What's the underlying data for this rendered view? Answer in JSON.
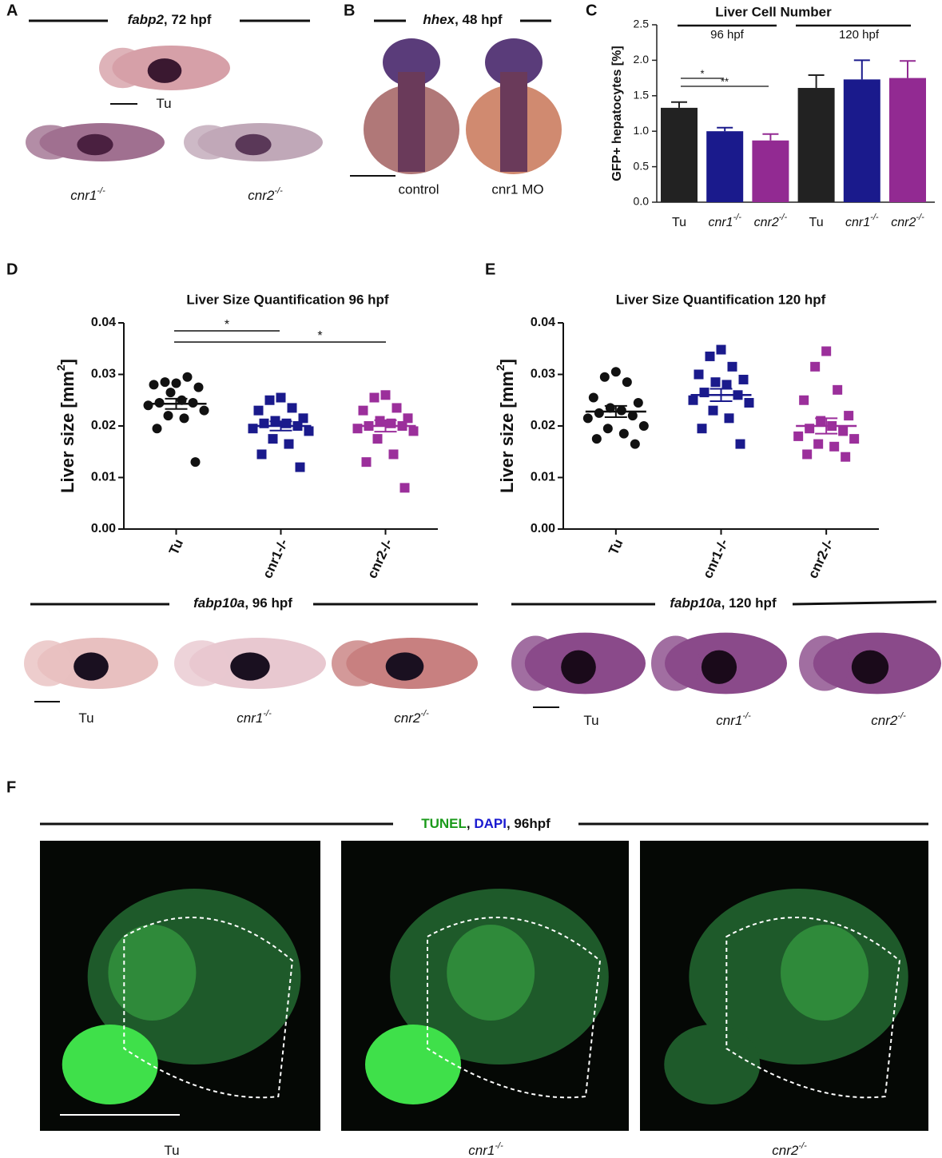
{
  "figure": {
    "panel_letters": [
      "A",
      "B",
      "C",
      "D",
      "E",
      "F"
    ],
    "panel_a": {
      "title": {
        "gene": "fabp2",
        "rest": ", 72 hpf"
      },
      "labels": [
        {
          "name": "Tu"
        },
        {
          "name": "cnr1",
          "sup": "-/-"
        },
        {
          "name": "cnr2",
          "sup": "-/-"
        }
      ]
    },
    "panel_b": {
      "title": {
        "gene": "hhex",
        "rest": ", 48 hpf"
      },
      "labels": [
        "control",
        "cnr1 MO"
      ]
    },
    "panel_d_images": {
      "title": {
        "gene": "fabp10a",
        "rest": ", 96 hpf"
      },
      "labels": [
        {
          "name": "Tu"
        },
        {
          "name": "cnr1",
          "sup": "-/-"
        },
        {
          "name": "cnr2",
          "sup": "-/-"
        }
      ]
    },
    "panel_e_images": {
      "title": {
        "gene": "fabp10a",
        "rest": ", 120 hpf"
      },
      "labels": [
        {
          "name": "Tu"
        },
        {
          "name": "cnr1",
          "sup": "-/-"
        },
        {
          "name": "cnr2",
          "sup": "-/-"
        }
      ]
    },
    "panel_f": {
      "title": [
        {
          "text": "TUNEL",
          "color": "#1a9a1a"
        },
        {
          "text": ", ",
          "color": "#111111"
        },
        {
          "text": "DAPI",
          "color": "#1a1ad0"
        },
        {
          "text": ", ",
          "color": "#111111"
        },
        {
          "text": "96hpf",
          "color": "#111111"
        }
      ],
      "labels": [
        {
          "name": "Tu"
        },
        {
          "name": "cnr1",
          "sup": "-/-"
        },
        {
          "name": "cnr2",
          "sup": "-/-"
        }
      ]
    }
  },
  "chart_data": [
    {
      "type": "bar",
      "title": "Liver Cell Number",
      "ylabel": "GFP+ hepatocytes [%]",
      "groups": [
        "96 hpf",
        "120 hpf"
      ],
      "categories": [
        {
          "name": "Tu"
        },
        {
          "name": "cnr1",
          "sup": "-/-"
        },
        {
          "name": "cnr2",
          "sup": "-/-"
        },
        {
          "name": "Tu"
        },
        {
          "name": "cnr1",
          "sup": "-/-"
        },
        {
          "name": "cnr2",
          "sup": "-/-"
        }
      ],
      "values": [
        1.33,
        1.0,
        0.87,
        1.61,
        1.73,
        1.75
      ],
      "errors": [
        0.08,
        0.05,
        0.09,
        0.18,
        0.27,
        0.24
      ],
      "colors": [
        "#222222",
        "#1a1a8c",
        "#922a92",
        "#222222",
        "#1a1a8c",
        "#922a92"
      ],
      "ylim": [
        0,
        2.5
      ],
      "yticks": [
        {
          "value": 0,
          "label": "0.0"
        },
        0.5,
        {
          "value": 1,
          "label": "1.0"
        },
        1.5,
        {
          "value": 2,
          "label": "2.0"
        },
        2.5
      ],
      "annotations": [
        "*",
        "**"
      ]
    },
    {
      "type": "scatter",
      "title": "Liver Size Quantification 96 hpf",
      "ylabel": {
        "text": "Liver size [mm",
        "sup": "2",
        "end": "]"
      },
      "categories": [
        "Tu",
        "cnr1-/-",
        "cnr2-/-"
      ],
      "groups": [
        {
          "color": "#111111",
          "marker": "circle",
          "values": [
            0.0283,
            0.0285,
            0.0295,
            0.028,
            0.0275,
            0.0265,
            0.025,
            0.0245,
            0.0245,
            0.024,
            0.023,
            0.022,
            0.0215,
            0.0195,
            0.013
          ],
          "mean": 0.0243,
          "sem": 0.001
        },
        {
          "color": "#1a1a8c",
          "marker": "square",
          "values": [
            0.0255,
            0.025,
            0.0235,
            0.023,
            0.0215,
            0.021,
            0.0205,
            0.0205,
            0.02,
            0.0195,
            0.019,
            0.0175,
            0.0165,
            0.0145,
            0.012
          ],
          "mean": 0.02,
          "sem": 0.0009
        },
        {
          "color": "#9b2f9b",
          "marker": "square",
          "values": [
            0.026,
            0.0255,
            0.0235,
            0.023,
            0.0215,
            0.021,
            0.0205,
            0.02,
            0.02,
            0.0195,
            0.019,
            0.0175,
            0.0145,
            0.013,
            0.008
          ],
          "mean": 0.02,
          "sem": 0.0011
        }
      ],
      "ylim": [
        0,
        0.04
      ],
      "yticks": [
        {
          "value": 0,
          "label": "0.00"
        },
        {
          "value": 0.01,
          "label": "0.01"
        },
        {
          "value": 0.02,
          "label": "0.02"
        },
        {
          "value": 0.03,
          "label": "0.03"
        },
        {
          "value": 0.04,
          "label": "0.04"
        }
      ],
      "annotations": [
        "*",
        "*"
      ]
    },
    {
      "type": "scatter",
      "title": "Liver Size Quantification 120 hpf",
      "ylabel": {
        "text": "Liver size [mm",
        "sup": "2",
        "end": "]"
      },
      "categories": [
        "Tu",
        "cnr1-/-",
        "cnr2-/-"
      ],
      "groups": [
        {
          "color": "#111111",
          "marker": "circle",
          "values": [
            0.0305,
            0.0295,
            0.0285,
            0.0255,
            0.0245,
            0.0235,
            0.023,
            0.0225,
            0.022,
            0.0215,
            0.02,
            0.0195,
            0.0185,
            0.0175,
            0.0165
          ],
          "mean": 0.0228,
          "sem": 0.0011
        },
        {
          "color": "#1a1a8c",
          "marker": "square",
          "values": [
            0.0348,
            0.0335,
            0.0315,
            0.03,
            0.029,
            0.0285,
            0.028,
            0.0265,
            0.026,
            0.025,
            0.0245,
            0.023,
            0.0215,
            0.0195,
            0.0165
          ],
          "mean": 0.026,
          "sem": 0.0012
        },
        {
          "color": "#9b2f9b",
          "marker": "square",
          "values": [
            0.0345,
            0.0315,
            0.027,
            0.025,
            0.022,
            0.021,
            0.02,
            0.0195,
            0.019,
            0.018,
            0.0175,
            0.0165,
            0.016,
            0.0145,
            0.014
          ],
          "mean": 0.02,
          "sem": 0.0015
        }
      ],
      "ylim": [
        0,
        0.04
      ],
      "yticks": [
        {
          "value": 0,
          "label": "0.00"
        },
        {
          "value": 0.01,
          "label": "0.01"
        },
        {
          "value": 0.02,
          "label": "0.02"
        },
        {
          "value": 0.03,
          "label": "0.03"
        },
        {
          "value": 0.04,
          "label": "0.04"
        }
      ],
      "annotations": []
    }
  ]
}
